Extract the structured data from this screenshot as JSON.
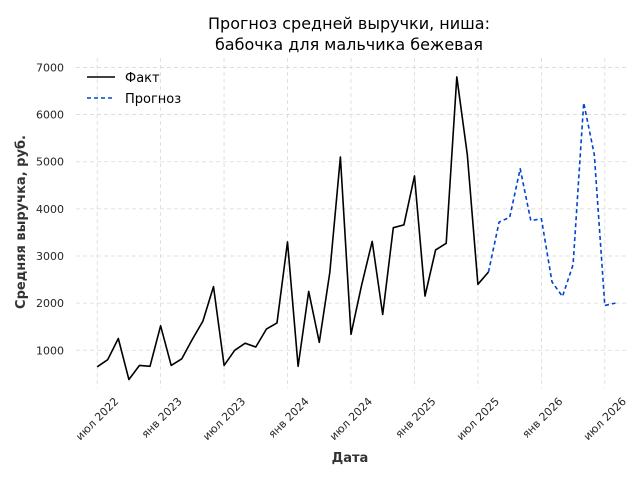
{
  "chart_data": {
    "type": "line",
    "title_line1": "Прогноз средней выручки, ниша:",
    "title_line2": "бабочка для мальчика бежевая",
    "xlabel": "Дата",
    "ylabel": "Средняя выручка, руб.",
    "x_ticks": [
      "2022-07",
      "2023-01",
      "2023-07",
      "2024-01",
      "2024-07",
      "2025-01",
      "2025-07",
      "2026-01",
      "2026-07"
    ],
    "x_tick_labels": [
      "июл 2022",
      "янв 2023",
      "июл 2023",
      "янв 2024",
      "июл 2024",
      "янв 2025",
      "июл 2025",
      "янв 2026",
      "июл 2026"
    ],
    "y_ticks": [
      1000,
      2000,
      3000,
      4000,
      5000,
      6000,
      7000
    ],
    "y_tick_labels": [
      "1000",
      "2000",
      "3000",
      "4000",
      "5000",
      "6000",
      "7000"
    ],
    "xlim": [
      "2022-05",
      "2026-09"
    ],
    "ylim": [
      200,
      7200
    ],
    "grid": true,
    "legend_position": "top-left",
    "series": [
      {
        "name": "Факт",
        "color": "#000000",
        "style": "solid",
        "x": [
          "2022-07",
          "2022-08",
          "2022-09",
          "2022-10",
          "2022-11",
          "2022-12",
          "2023-01",
          "2023-02",
          "2023-03",
          "2023-04",
          "2023-05",
          "2023-06",
          "2023-07",
          "2023-08",
          "2023-09",
          "2023-10",
          "2023-11",
          "2023-12",
          "2024-01",
          "2024-02",
          "2024-03",
          "2024-04",
          "2024-05",
          "2024-06",
          "2024-07",
          "2024-08",
          "2024-09",
          "2024-10",
          "2024-11",
          "2024-12",
          "2025-01",
          "2025-02",
          "2025-03",
          "2025-04",
          "2025-05",
          "2025-06",
          "2025-07",
          "2025-08"
        ],
        "values": [
          650,
          800,
          1250,
          380,
          680,
          660,
          1520,
          680,
          820,
          1230,
          1620,
          2350,
          680,
          1000,
          1150,
          1070,
          1450,
          1580,
          3300,
          660,
          2250,
          1170,
          2650,
          5100,
          1340,
          2380,
          3310,
          1760,
          3600,
          3660,
          4700,
          2150,
          3130,
          3270,
          6800,
          5150,
          2400,
          2660
        ]
      },
      {
        "name": "Прогноз",
        "color": "#0044cc",
        "style": "dashed",
        "x": [
          "2025-08",
          "2025-09",
          "2025-10",
          "2025-11",
          "2025-12",
          "2026-01",
          "2026-02",
          "2026-03",
          "2026-04",
          "2026-05",
          "2026-06",
          "2026-07",
          "2026-08"
        ],
        "values": [
          2660,
          3720,
          3820,
          4850,
          3750,
          3790,
          2450,
          2140,
          2820,
          6250,
          5150,
          1950,
          2000
        ]
      }
    ]
  }
}
